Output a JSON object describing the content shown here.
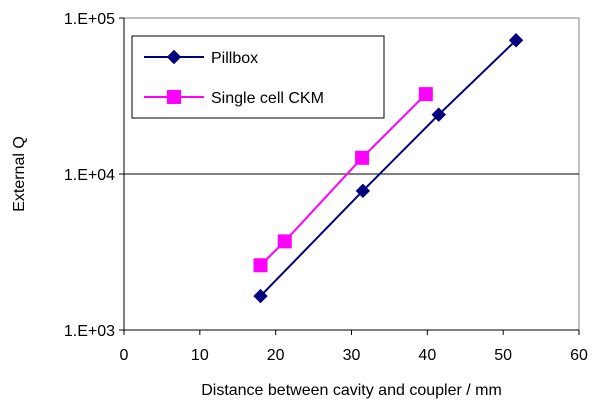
{
  "chart_data": {
    "type": "scatter",
    "title": "",
    "xlabel": "Distance between cavity and coupler / mm",
    "ylabel": "External Q",
    "xlim": [
      0,
      60
    ],
    "ylim": [
      1000,
      100000
    ],
    "y_scale": "log",
    "grid": "horizontal major lines at 1.E+04",
    "legend_placement": "top-left",
    "x_ticks": [
      "0",
      "10",
      "20",
      "30",
      "40",
      "50",
      "60"
    ],
    "y_ticks": [
      "1.E+03",
      "1.E+04",
      "1.E+05"
    ],
    "series": [
      {
        "name": "Pillbox",
        "color": "#00007f",
        "marker": "diamond",
        "x": [
          18,
          31.5,
          41.5,
          51.7
        ],
        "y": [
          1650,
          7800,
          24000,
          72000
        ]
      },
      {
        "name": "Single cell CKM",
        "color": "#ff00ff",
        "marker": "square",
        "x": [
          18,
          21.2,
          31.4,
          39.8
        ],
        "y": [
          2600,
          3700,
          12700,
          32500
        ]
      }
    ]
  }
}
